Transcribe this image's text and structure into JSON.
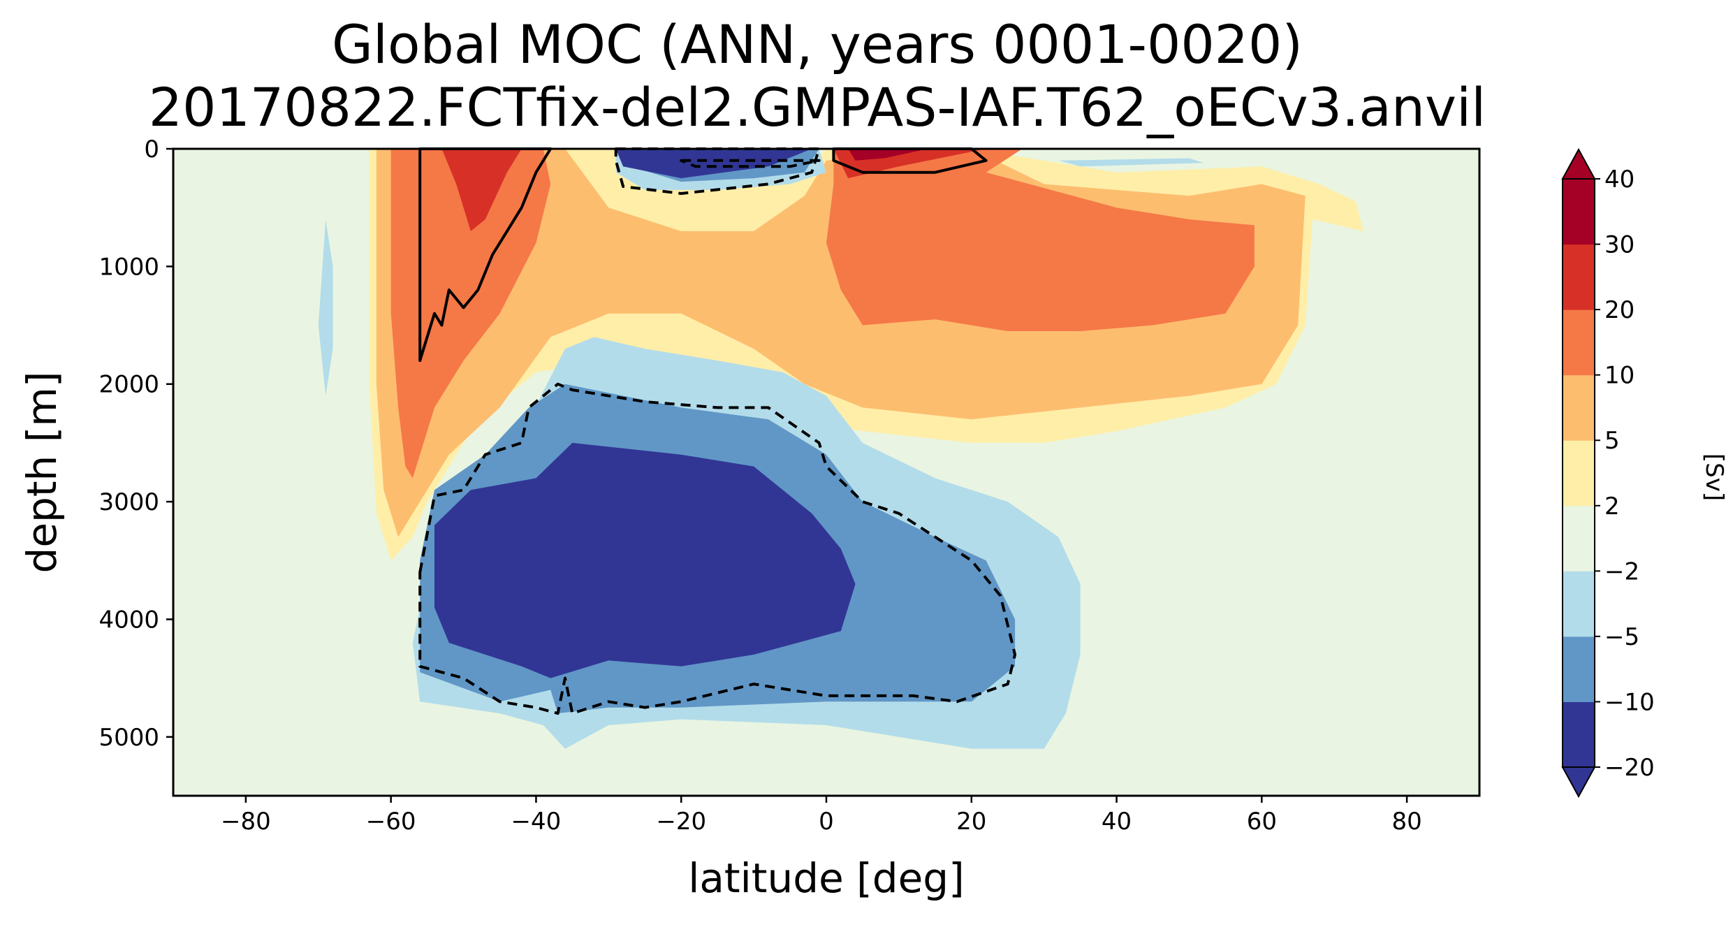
{
  "chart_data": {
    "type": "heatmap",
    "subtype": "filled-contour",
    "title_line1": "Global MOC (ANN, years 0001-0020)",
    "title_line2": "20170822.FCTfix-del2.GMPAS-IAF.T62_oECv3.anvil",
    "xlabel": "latitude [deg]",
    "ylabel": "depth [m]",
    "xlim": [
      -90,
      90
    ],
    "ylim": [
      5500,
      0
    ],
    "xticks": [
      -80,
      -60,
      -40,
      -20,
      0,
      20,
      40,
      60,
      80
    ],
    "yticks": [
      0,
      1000,
      2000,
      3000,
      4000,
      5000
    ],
    "background_level_color": "#e9f5e2",
    "colorbar": {
      "label": "[Sv]",
      "levels": [
        -20,
        -10,
        -5,
        -2,
        2,
        5,
        10,
        20,
        30,
        40
      ],
      "tick_labels": [
        "−20",
        "−10",
        "−5",
        "−2",
        "2",
        "5",
        "10",
        "20",
        "30",
        "40"
      ],
      "colors": [
        "#313695",
        "#6197c6",
        "#b3dcea",
        "#e9f5e2",
        "#feeea8",
        "#fdbd6f",
        "#f57847",
        "#d73127",
        "#a50026"
      ],
      "extend": "both"
    },
    "contour_lines": [
      {
        "level": 10,
        "style": "solid"
      },
      {
        "level": -10,
        "style": "dashed"
      }
    ],
    "regions": [
      {
        "name": "southern-yellow-cell",
        "level": "2 to 5",
        "color": "#feeea8",
        "points": [
          [
            -63,
            0
          ],
          [
            -28,
            0
          ],
          [
            -22,
            200
          ],
          [
            -10,
            250
          ],
          [
            -3,
            200
          ],
          [
            0,
            0
          ],
          [
            20,
            0
          ],
          [
            40,
            200
          ],
          [
            60,
            150
          ],
          [
            68,
            300
          ],
          [
            73,
            450
          ],
          [
            74,
            700
          ],
          [
            67,
            600
          ],
          [
            66,
            1500
          ],
          [
            62,
            2000
          ],
          [
            55,
            2200
          ],
          [
            40,
            2400
          ],
          [
            30,
            2500
          ],
          [
            20,
            2500
          ],
          [
            5,
            2400
          ],
          [
            -5,
            2300
          ],
          [
            -12,
            2100
          ],
          [
            -22,
            1900
          ],
          [
            -30,
            1800
          ],
          [
            -40,
            1900
          ],
          [
            -48,
            2300
          ],
          [
            -52,
            2700
          ],
          [
            -55,
            3000
          ],
          [
            -57,
            3300
          ],
          [
            -60,
            3500
          ],
          [
            -62,
            3100
          ],
          [
            -63,
            2000
          ],
          [
            -63,
            800
          ]
        ]
      },
      {
        "name": "orange-5-cell",
        "level": "5 to 10",
        "color": "#fdbd6f",
        "points": [
          [
            -62,
            0
          ],
          [
            -36,
            0
          ],
          [
            -30,
            500
          ],
          [
            -20,
            700
          ],
          [
            -10,
            700
          ],
          [
            -3,
            400
          ],
          [
            0,
            100
          ],
          [
            20,
            0
          ],
          [
            30,
            300
          ],
          [
            50,
            400
          ],
          [
            60,
            300
          ],
          [
            66,
            400
          ],
          [
            65,
            1500
          ],
          [
            60,
            2000
          ],
          [
            50,
            2100
          ],
          [
            35,
            2200
          ],
          [
            20,
            2300
          ],
          [
            5,
            2200
          ],
          [
            -3,
            2000
          ],
          [
            -10,
            1700
          ],
          [
            -20,
            1400
          ],
          [
            -30,
            1400
          ],
          [
            -38,
            1600
          ],
          [
            -45,
            2200
          ],
          [
            -52,
            2600
          ],
          [
            -55,
            2900
          ],
          [
            -59,
            3300
          ],
          [
            -61,
            2900
          ],
          [
            -62,
            2000
          ],
          [
            -62,
            800
          ]
        ]
      },
      {
        "name": "southern-ocean-red-cell",
        "level": "10 to 20",
        "color": "#f57847",
        "points": [
          [
            -60,
            0
          ],
          [
            -39,
            0
          ],
          [
            -38,
            300
          ],
          [
            -40,
            800
          ],
          [
            -45,
            1400
          ],
          [
            -50,
            1800
          ],
          [
            -54,
            2200
          ],
          [
            -57,
            2800
          ],
          [
            -58,
            2700
          ],
          [
            -59,
            2200
          ],
          [
            -60,
            1400
          ],
          [
            -60,
            600
          ]
        ]
      },
      {
        "name": "northern-red-cell",
        "level": "10 to 20",
        "color": "#f57847",
        "points": [
          [
            1,
            0
          ],
          [
            27,
            0
          ],
          [
            22,
            200
          ],
          [
            40,
            500
          ],
          [
            50,
            600
          ],
          [
            59,
            650
          ],
          [
            59,
            1000
          ],
          [
            55,
            1400
          ],
          [
            45,
            1500
          ],
          [
            35,
            1550
          ],
          [
            25,
            1550
          ],
          [
            15,
            1450
          ],
          [
            5,
            1500
          ],
          [
            2,
            1200
          ],
          [
            0,
            800
          ],
          [
            1,
            300
          ]
        ]
      },
      {
        "name": "southern-ocean-core",
        "level": "20 to 30",
        "color": "#d73127",
        "points": [
          [
            -53,
            0
          ],
          [
            -42,
            0
          ],
          [
            -44,
            200
          ],
          [
            -47,
            600
          ],
          [
            -49,
            700
          ],
          [
            -51,
            300
          ]
        ]
      },
      {
        "name": "equatorial-north-core",
        "level": "20 to 30",
        "color": "#d73127",
        "points": [
          [
            1,
            0
          ],
          [
            22,
            0
          ],
          [
            10,
            150
          ],
          [
            3,
            250
          ]
        ]
      },
      {
        "name": "equatorial-north-peak",
        "level": "30 to 40",
        "color": "#a50026",
        "points": [
          [
            3,
            0
          ],
          [
            14,
            0
          ],
          [
            8,
            80
          ],
          [
            4,
            100
          ]
        ]
      },
      {
        "name": "deep-cell-outer",
        "level": "-2 to -5",
        "color": "#b3dcea",
        "points": [
          [
            -55,
            3600
          ],
          [
            -52,
            3000
          ],
          [
            -47,
            2700
          ],
          [
            -41,
            2300
          ],
          [
            -36,
            1700
          ],
          [
            -32,
            1600
          ],
          [
            -25,
            1700
          ],
          [
            -15,
            1800
          ],
          [
            -6,
            1900
          ],
          [
            0,
            2100
          ],
          [
            5,
            2500
          ],
          [
            15,
            2800
          ],
          [
            25,
            3000
          ],
          [
            32,
            3300
          ],
          [
            35,
            3700
          ],
          [
            35,
            4300
          ],
          [
            33,
            4800
          ],
          [
            30,
            5100
          ],
          [
            20,
            5100
          ],
          [
            0,
            4900
          ],
          [
            -20,
            4850
          ],
          [
            -30,
            4900
          ],
          [
            -36,
            5100
          ],
          [
            -39,
            4900
          ],
          [
            -45,
            4800
          ],
          [
            -56,
            4700
          ],
          [
            -57,
            4200
          ]
        ]
      },
      {
        "name": "deep-cell-mid",
        "level": "-5 to -10",
        "color": "#6197c6",
        "points": [
          [
            -56,
            3500
          ],
          [
            -54,
            2900
          ],
          [
            -47,
            2600
          ],
          [
            -41,
            2200
          ],
          [
            -36,
            2000
          ],
          [
            -20,
            2200
          ],
          [
            -8,
            2300
          ],
          [
            0,
            2600
          ],
          [
            5,
            3000
          ],
          [
            15,
            3300
          ],
          [
            22,
            3500
          ],
          [
            26,
            4000
          ],
          [
            26,
            4400
          ],
          [
            20,
            4700
          ],
          [
            0,
            4700
          ],
          [
            -20,
            4750
          ],
          [
            -30,
            4750
          ],
          [
            -37,
            4800
          ],
          [
            -38,
            4600
          ],
          [
            -45,
            4700
          ],
          [
            -56,
            4450
          ]
        ]
      },
      {
        "name": "deep-cell-core",
        "level": "-10 to -20",
        "color": "#313695",
        "points": [
          [
            -54,
            3200
          ],
          [
            -49,
            2900
          ],
          [
            -40,
            2800
          ],
          [
            -35,
            2500
          ],
          [
            -20,
            2600
          ],
          [
            -10,
            2700
          ],
          [
            -2,
            3100
          ],
          [
            2,
            3400
          ],
          [
            4,
            3700
          ],
          [
            2,
            4100
          ],
          [
            -10,
            4300
          ],
          [
            -20,
            4400
          ],
          [
            -30,
            4350
          ],
          [
            -38,
            4500
          ],
          [
            -42,
            4400
          ],
          [
            -52,
            4200
          ],
          [
            -54,
            3900
          ]
        ]
      },
      {
        "name": "northern-surface-blue",
        "level": "-2 to -5",
        "color": "#b3dcea",
        "points": [
          [
            32,
            100
          ],
          [
            50,
            80
          ],
          [
            52,
            120
          ],
          [
            35,
            150
          ]
        ]
      },
      {
        "name": "southern-patch-blue",
        "level": "-2 to -5",
        "color": "#b3dcea",
        "points": [
          [
            -69,
            600
          ],
          [
            -68,
            1000
          ],
          [
            -68,
            1700
          ],
          [
            -69,
            2100
          ],
          [
            -70,
            1500
          ]
        ]
      },
      {
        "name": "equatorial-south-blue",
        "level": "-2 to -5",
        "color": "#b3dcea",
        "points": [
          [
            -29,
            0
          ],
          [
            -1,
            0
          ],
          [
            0,
            200
          ],
          [
            -5,
            300
          ],
          [
            -15,
            350
          ],
          [
            -25,
            350
          ],
          [
            -29,
            200
          ]
        ]
      },
      {
        "name": "equatorial-south-mid",
        "level": "-5 to -10",
        "color": "#6197c6",
        "points": [
          [
            -28,
            0
          ],
          [
            -1,
            0
          ],
          [
            -3,
            200
          ],
          [
            -10,
            250
          ],
          [
            -20,
            280
          ],
          [
            -27,
            150
          ]
        ]
      },
      {
        "name": "equatorial-south-core",
        "level": "-10 to -20",
        "color": "#313695",
        "points": [
          [
            -29,
            0
          ],
          [
            -2,
            0
          ],
          [
            -8,
            150
          ],
          [
            -20,
            250
          ],
          [
            -28,
            150
          ]
        ]
      }
    ],
    "contours": [
      {
        "name": "southern-ocean-10sv-contour",
        "style": "solid",
        "points": [
          [
            -56,
            0
          ],
          [
            -38,
            0
          ],
          [
            -40,
            200
          ],
          [
            -42,
            500
          ],
          [
            -44,
            700
          ],
          [
            -46,
            900
          ],
          [
            -48,
            1200
          ],
          [
            -50,
            1350
          ],
          [
            -52,
            1200
          ],
          [
            -53,
            1500
          ],
          [
            -54,
            1400
          ],
          [
            -55,
            1600
          ],
          [
            -56,
            1800
          ],
          [
            -56,
            1300
          ],
          [
            -56,
            500
          ]
        ]
      },
      {
        "name": "equatorial-north-10sv-contour",
        "style": "solid",
        "points": [
          [
            1,
            0
          ],
          [
            20,
            0
          ],
          [
            22,
            100
          ],
          [
            15,
            200
          ],
          [
            5,
            200
          ],
          [
            1,
            100
          ]
        ]
      },
      {
        "name": "equatorial-south-minus10sv-contour",
        "style": "dashed",
        "points": [
          [
            -29,
            0
          ],
          [
            -1,
            0
          ],
          [
            -2,
            200
          ],
          [
            -8,
            300
          ],
          [
            -20,
            380
          ],
          [
            -28,
            320
          ],
          [
            -29,
            100
          ]
        ]
      },
      {
        "name": "equatorial-south-inner-minus10sv-contour",
        "style": "dashed",
        "points": [
          [
            -20,
            100
          ],
          [
            -1,
            100
          ],
          [
            -5,
            150
          ],
          [
            -18,
            150
          ]
        ]
      },
      {
        "name": "deep-cell-minus10sv-contour",
        "style": "dashed",
        "points": [
          [
            -56,
            3600
          ],
          [
            -54,
            2950
          ],
          [
            -50,
            2900
          ],
          [
            -47,
            2600
          ],
          [
            -42,
            2500
          ],
          [
            -41,
            2200
          ],
          [
            -37,
            2000
          ],
          [
            -35,
            2050
          ],
          [
            -25,
            2150
          ],
          [
            -15,
            2200
          ],
          [
            -8,
            2200
          ],
          [
            -1,
            2500
          ],
          [
            0,
            2700
          ],
          [
            5,
            3000
          ],
          [
            10,
            3100
          ],
          [
            15,
            3300
          ],
          [
            20,
            3500
          ],
          [
            24,
            3800
          ],
          [
            26,
            4300
          ],
          [
            25,
            4550
          ],
          [
            18,
            4700
          ],
          [
            12,
            4650
          ],
          [
            5,
            4650
          ],
          [
            0,
            4650
          ],
          [
            -5,
            4600
          ],
          [
            -10,
            4550
          ],
          [
            -20,
            4700
          ],
          [
            -25,
            4750
          ],
          [
            -30,
            4700
          ],
          [
            -35,
            4800
          ],
          [
            -36,
            4500
          ],
          [
            -37,
            4800
          ],
          [
            -40,
            4750
          ],
          [
            -45,
            4700
          ],
          [
            -50,
            4500
          ],
          [
            -56,
            4400
          ],
          [
            -56,
            4000
          ]
        ]
      }
    ]
  }
}
